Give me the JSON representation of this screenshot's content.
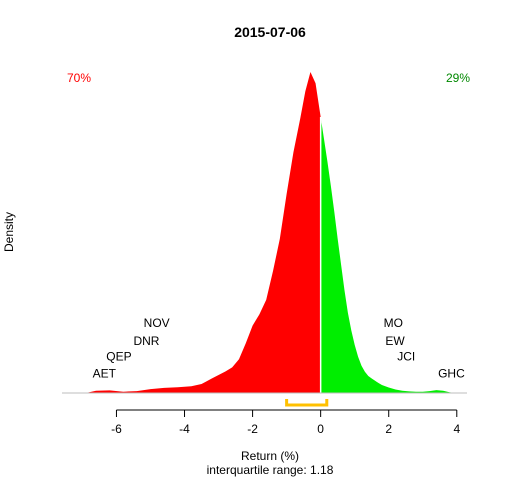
{
  "chart_data": {
    "type": "area",
    "title": "2015-07-06",
    "xlabel": "Return (%)",
    "ylabel": "Density",
    "subtitle": "interquartile range: 1.18",
    "xlim": [
      -7.6,
      4.3
    ],
    "ylim": [
      0,
      1.0
    ],
    "xticks": [
      -6,
      -4,
      -2,
      0,
      2,
      4
    ],
    "tick_labels": [
      "-6",
      "-4",
      "-2",
      "0",
      "2",
      "4"
    ],
    "pct_negative": "70%",
    "pct_positive": "29%",
    "colors": {
      "negative": "#ff0000",
      "positive": "#00ee00",
      "iqr": "#ffc000",
      "baseline": "#bebebe"
    },
    "iqr": [
      -1.0,
      0.18
    ],
    "stock_labels": [
      {
        "text": "NOV",
        "x": -5.2,
        "y": 0.205
      },
      {
        "text": "DNR",
        "x": -5.5,
        "y": 0.15
      },
      {
        "text": "QEP",
        "x": -6.3,
        "y": 0.102
      },
      {
        "text": "AET",
        "x": -6.7,
        "y": 0.048
      },
      {
        "text": "MO",
        "x": 1.85,
        "y": 0.205
      },
      {
        "text": "EW",
        "x": 1.9,
        "y": 0.15
      },
      {
        "text": "JCI",
        "x": 2.25,
        "y": 0.102
      },
      {
        "text": "GHC",
        "x": 3.45,
        "y": 0.048
      }
    ],
    "density": {
      "x": [
        -6.9,
        -6.6,
        -6.2,
        -5.8,
        -5.4,
        -5.0,
        -4.6,
        -4.2,
        -3.8,
        -3.5,
        -3.2,
        -3.0,
        -2.8,
        -2.6,
        -2.4,
        -2.2,
        -2.0,
        -1.8,
        -1.6,
        -1.4,
        -1.2,
        -1.0,
        -0.8,
        -0.6,
        -0.45,
        -0.3,
        -0.15,
        0.0,
        0.1,
        0.2,
        0.3,
        0.4,
        0.5,
        0.6,
        0.7,
        0.8,
        0.9,
        1.0,
        1.1,
        1.2,
        1.3,
        1.4,
        1.5,
        1.6,
        1.7,
        1.8,
        2.0,
        2.2,
        2.4,
        2.6,
        2.8,
        3.0,
        3.2,
        3.4,
        3.6,
        3.8,
        4.0
      ],
      "y": [
        0.0,
        0.007,
        0.008,
        0.004,
        0.006,
        0.012,
        0.016,
        0.018,
        0.021,
        0.028,
        0.045,
        0.056,
        0.067,
        0.08,
        0.105,
        0.155,
        0.21,
        0.245,
        0.29,
        0.38,
        0.48,
        0.62,
        0.75,
        0.855,
        0.94,
        1.0,
        0.965,
        0.86,
        0.79,
        0.72,
        0.645,
        0.565,
        0.48,
        0.4,
        0.32,
        0.25,
        0.195,
        0.15,
        0.113,
        0.085,
        0.066,
        0.053,
        0.045,
        0.038,
        0.031,
        0.025,
        0.017,
        0.011,
        0.007,
        0.005,
        0.004,
        0.004,
        0.006,
        0.009,
        0.007,
        0.002,
        0.0
      ]
    }
  }
}
